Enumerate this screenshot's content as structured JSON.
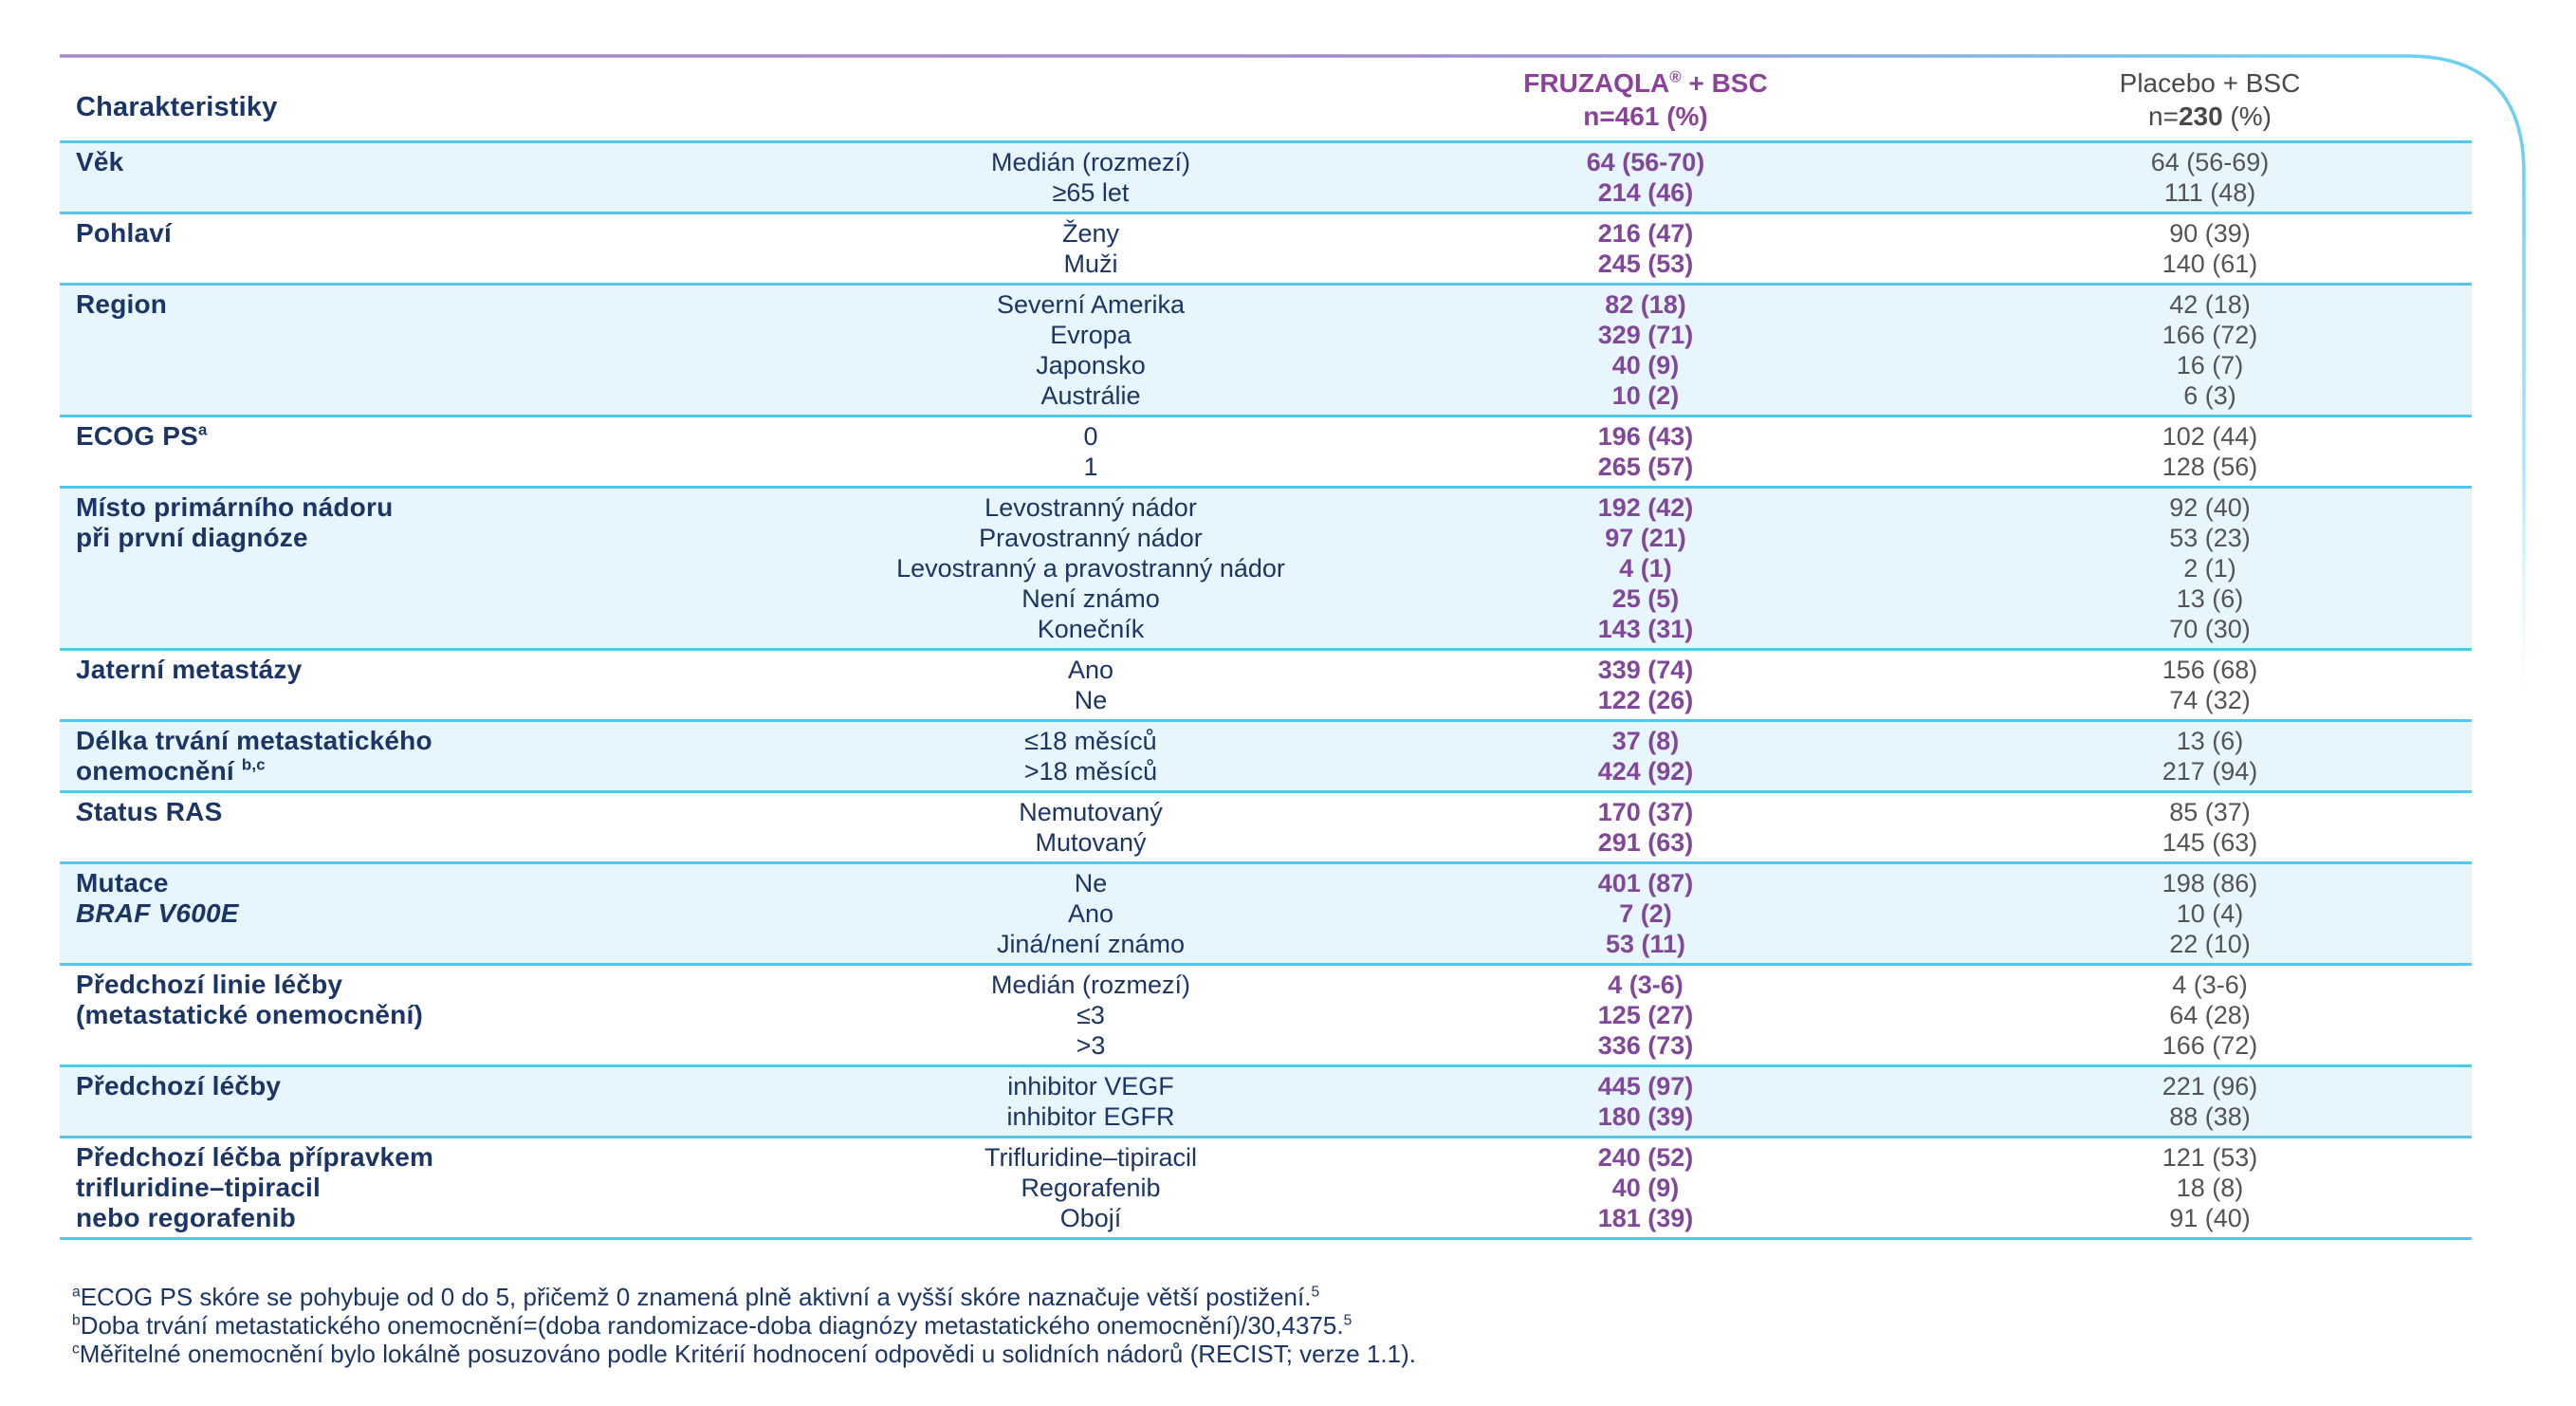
{
  "colors": {
    "navy_text": "#1A3566",
    "purple_text": "#81479B",
    "purple_header": "#8B4399",
    "gray_text": "#525457",
    "shaded_row_bg": "#E7F5FC",
    "separator_cyan": "#54C6EC",
    "frame_purple": "#A886C6",
    "frame_cyan": "#6FCFF2"
  },
  "table": {
    "header": {
      "characteristics": "Charakteristiky",
      "fruzaqla_title": [
        {
          "t": "FRUZAQLA"
        },
        {
          "t": "®",
          "s": 1
        },
        {
          "t": " + BSC"
        }
      ],
      "fruzaqla_n": [
        {
          "t": "n=461 (%)"
        }
      ],
      "placebo_title": [
        {
          "t": "Placebo + BSC"
        }
      ],
      "placebo_n": [
        {
          "t": "n="
        },
        {
          "t": "230",
          "b": 1
        },
        {
          "t": " (%)"
        }
      ]
    },
    "rows": [
      {
        "shaded": true,
        "label": [
          [
            {
              "t": "Věk"
            }
          ]
        ],
        "cats": [
          "Medián (rozmezí)",
          "≥65 let"
        ],
        "fruzaqla": [
          "64 (56-70)",
          "214 (46)"
        ],
        "placebo": [
          "64 (56-69)",
          "111 (48)"
        ]
      },
      {
        "shaded": false,
        "label": [
          [
            {
              "t": "Pohlaví"
            }
          ]
        ],
        "cats": [
          "Ženy",
          "Muži"
        ],
        "fruzaqla": [
          "216 (47)",
          "245 (53)"
        ],
        "placebo": [
          "90 (39)",
          "140 (61)"
        ]
      },
      {
        "shaded": true,
        "label": [
          [
            {
              "t": "Region"
            }
          ]
        ],
        "cats": [
          "Severní Amerika",
          "Evropa",
          "Japonsko",
          "Austrálie"
        ],
        "fruzaqla": [
          "82 (18)",
          "329 (71)",
          "40 (9)",
          "10 (2)"
        ],
        "placebo": [
          "42 (18)",
          "166 (72)",
          "16 (7)",
          "6 (3)"
        ]
      },
      {
        "shaded": false,
        "label": [
          [
            {
              "t": "ECOG PS"
            },
            {
              "t": "a",
              "s": 1
            }
          ]
        ],
        "cats": [
          "0",
          "1"
        ],
        "fruzaqla": [
          "196 (43)",
          "265 (57)"
        ],
        "placebo": [
          "102 (44)",
          "128 (56)"
        ]
      },
      {
        "shaded": true,
        "label": [
          [
            {
              "t": "Místo primárního nádoru"
            }
          ],
          [
            {
              "t": "při první diagnóze"
            }
          ]
        ],
        "cats": [
          "Levostranný nádor",
          "Pravostranný nádor",
          "Levostranný a pravostranný nádor",
          "Není známo",
          "Konečník"
        ],
        "fruzaqla": [
          "192 (42)",
          "97 (21)",
          "4 (1)",
          "25 (5)",
          "143 (31)"
        ],
        "placebo": [
          "92 (40)",
          "53 (23)",
          "2 (1)",
          "13 (6)",
          "70 (30)"
        ]
      },
      {
        "shaded": false,
        "label": [
          [
            {
              "t": "Jaterní metastázy"
            }
          ]
        ],
        "cats": [
          "Ano",
          "Ne"
        ],
        "fruzaqla": [
          "339 (74)",
          "122 (26)"
        ],
        "placebo": [
          "156 (68)",
          "74 (32)"
        ]
      },
      {
        "shaded": true,
        "label": [
          [
            {
              "t": "Délka trvání metastatického"
            }
          ],
          [
            {
              "t": "onemocnění "
            },
            {
              "t": "b,c",
              "s": 1
            }
          ]
        ],
        "cats": [
          "≤18 měsíců",
          ">18 měsíců"
        ],
        "fruzaqla": [
          "37 (8)",
          "424 (92)"
        ],
        "placebo": [
          "13 (6)",
          "217 (94)"
        ]
      },
      {
        "shaded": false,
        "label": [
          [
            {
              "t": "S",
              "i": 1
            },
            {
              "t": "tatus RAS"
            }
          ]
        ],
        "cats": [
          "Nemutovaný",
          "Mutovaný"
        ],
        "fruzaqla": [
          "170 (37)",
          "291 (63)"
        ],
        "placebo": [
          "85 (37)",
          "145 (63)"
        ]
      },
      {
        "shaded": true,
        "label": [
          [
            {
              "t": "Mutace"
            }
          ],
          [
            {
              "t": "BRAF V600E",
              "i": 1
            }
          ]
        ],
        "cats": [
          "Ne",
          "Ano",
          "Jiná/není známo"
        ],
        "fruzaqla": [
          "401 (87)",
          "7 (2)",
          "53 (11)"
        ],
        "placebo": [
          "198 (86)",
          "10 (4)",
          "22 (10)"
        ]
      },
      {
        "shaded": false,
        "label": [
          [
            {
              "t": "Předchozí linie léčby"
            }
          ],
          [
            {
              "t": "(metastatické onemocnění)"
            }
          ]
        ],
        "cats": [
          "Medián (rozmezí)",
          "≤3",
          ">3"
        ],
        "fruzaqla": [
          "4 (3-6)",
          "125 (27)",
          "336 (73)"
        ],
        "placebo": [
          "4 (3-6)",
          "64 (28)",
          "166 (72)"
        ]
      },
      {
        "shaded": true,
        "label": [
          [
            {
              "t": "Předchozí léčby"
            }
          ]
        ],
        "cats": [
          "inhibitor VEGF",
          "inhibitor EGFR"
        ],
        "fruzaqla": [
          "445 (97)",
          "180 (39)"
        ],
        "placebo": [
          "221 (96)",
          "88 (38)"
        ]
      },
      {
        "shaded": false,
        "label": [
          [
            {
              "t": "Předchozí léčba přípravkem"
            }
          ],
          [
            {
              "t": "trifluridine–tipiracil"
            }
          ],
          [
            {
              "t": "nebo regorafenib"
            }
          ]
        ],
        "cats": [
          "Trifluridine–tipiracil",
          "Regorafenib",
          "Obojí"
        ],
        "fruzaqla": [
          "240 (52)",
          "40 (9)",
          "181 (39)"
        ],
        "placebo": [
          "121 (53)",
          "18 (8)",
          "91 (40)"
        ]
      }
    ]
  },
  "footnotes": [
    [
      {
        "t": "a",
        "s": 1
      },
      {
        "t": "ECOG PS skóre se pohybuje od 0 do 5, přičemž 0 znamená plně aktivní a vyšší skóre naznačuje větší postižení."
      },
      {
        "t": "5",
        "s": 1
      }
    ],
    [
      {
        "t": "b",
        "s": 1
      },
      {
        "t": "Doba trvání metastatického onemocnění=(doba randomizace-doba diagnózy metastatického onemocnění)/30,4375."
      },
      {
        "t": "5",
        "s": 1
      }
    ],
    [
      {
        "t": "c",
        "s": 1
      },
      {
        "t": "Měřitelné onemocnění bylo lokálně posuzováno podle Kritérií hodnocení odpovědi u solidních nádorů (RECIST; verze 1.1)."
      }
    ]
  ]
}
